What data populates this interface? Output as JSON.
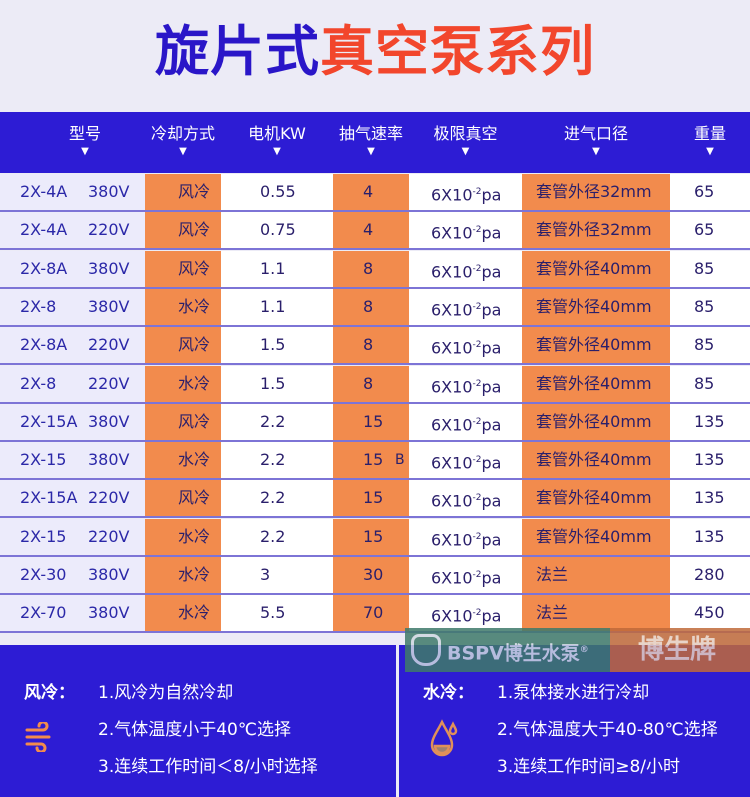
{
  "title": {
    "part1": "旋片式",
    "part2": "真空泵系列"
  },
  "headers": [
    "型号",
    "冷却方式",
    "电机KW",
    "抽气速率",
    "极限真空",
    "进气口径",
    "重量"
  ],
  "header_marker": "▼",
  "rows": [
    {
      "model": "2X-4A",
      "voltage": "380V",
      "cooling": "风冷",
      "kw": "0.55",
      "speed": "4",
      "vacuum": "6X10",
      "exp": "-2",
      "unit": "pa",
      "inlet": "套管外径32mm",
      "weight": "65"
    },
    {
      "model": "2X-4A",
      "voltage": "220V",
      "cooling": "风冷",
      "kw": "0.75",
      "speed": "4",
      "vacuum": "6X10",
      "exp": "-2",
      "unit": "pa",
      "inlet": "套管外径32mm",
      "weight": "65"
    },
    {
      "model": "2X-8A",
      "voltage": "380V",
      "cooling": "风冷",
      "kw": "1.1",
      "speed": "8",
      "vacuum": "6X10",
      "exp": "-2",
      "unit": "pa",
      "inlet": "套管外径40mm",
      "weight": "85"
    },
    {
      "model": "2X-8",
      "voltage": "380V",
      "cooling": "水冷",
      "kw": "1.1",
      "speed": "8",
      "vacuum": "6X10",
      "exp": "-2",
      "unit": "pa",
      "inlet": "套管外径40mm",
      "weight": "85"
    },
    {
      "model": "2X-8A",
      "voltage": "220V",
      "cooling": "风冷",
      "kw": "1.5",
      "speed": "8",
      "vacuum": "6X10",
      "exp": "-2",
      "unit": "pa",
      "inlet": "套管外径40mm",
      "weight": "85"
    },
    {
      "model": "2X-8",
      "voltage": "220V",
      "cooling": "水冷",
      "kw": "1.5",
      "speed": "8",
      "vacuum": "6X10",
      "exp": "-2",
      "unit": "pa",
      "inlet": "套管外径40mm",
      "weight": "85"
    },
    {
      "model": "2X-15A",
      "voltage": "380V",
      "cooling": "风冷",
      "kw": "2.2",
      "speed": "15",
      "vacuum": "6X10",
      "exp": "-2",
      "unit": "pa",
      "inlet": "套管外径40mm",
      "weight": "135"
    },
    {
      "model": "2X-15",
      "voltage": "380V",
      "cooling": "水冷",
      "kw": "2.2",
      "speed": "15",
      "extra": "B",
      "vacuum": "6X10",
      "exp": "-2",
      "unit": "pa",
      "inlet": "套管外径40mm",
      "weight": "135"
    },
    {
      "model": "2X-15A",
      "voltage": "220V",
      "cooling": "风冷",
      "kw": "2.2",
      "speed": "15",
      "vacuum": "6X10",
      "exp": "-2",
      "unit": "pa",
      "inlet": "套管外径40mm",
      "weight": "135"
    },
    {
      "model": "2X-15",
      "voltage": "220V",
      "cooling": "水冷",
      "kw": "2.2",
      "speed": "15",
      "vacuum": "6X10",
      "exp": "-2",
      "unit": "pa",
      "inlet": "套管外径40mm",
      "weight": "135"
    },
    {
      "model": "2X-30",
      "voltage": "380V",
      "cooling": "水冷",
      "kw": "3",
      "speed": "30",
      "vacuum": "6X10",
      "exp": "-2",
      "unit": "pa",
      "inlet": "法兰",
      "weight": "280"
    },
    {
      "model": "2X-70",
      "voltage": "380V",
      "cooling": "水冷",
      "kw": "5.5",
      "speed": "70",
      "vacuum": "6X10",
      "exp": "-2",
      "unit": "pa",
      "inlet": "法兰",
      "weight": "450"
    }
  ],
  "watermark": {
    "brand": "BSPV博生水泵",
    "reg": "®",
    "name": "博生牌"
  },
  "air": {
    "label": "风冷：",
    "lines": [
      "1.风冷为自然冷却",
      "2.气体温度小于40℃选择",
      "3.连续工作时间＜8/小时选择"
    ],
    "icon": "wind-icon"
  },
  "water": {
    "label": "水冷：",
    "lines": [
      "1.泵体接水进行冷却",
      "2.气体温度大于40-80℃选择",
      "3.连续工作时间≥8/小时"
    ],
    "icon": "water-drop-icon"
  },
  "colors": {
    "blue": "#2d1cd4",
    "orange": "#f28b4d",
    "title_red": "#f2462c"
  }
}
